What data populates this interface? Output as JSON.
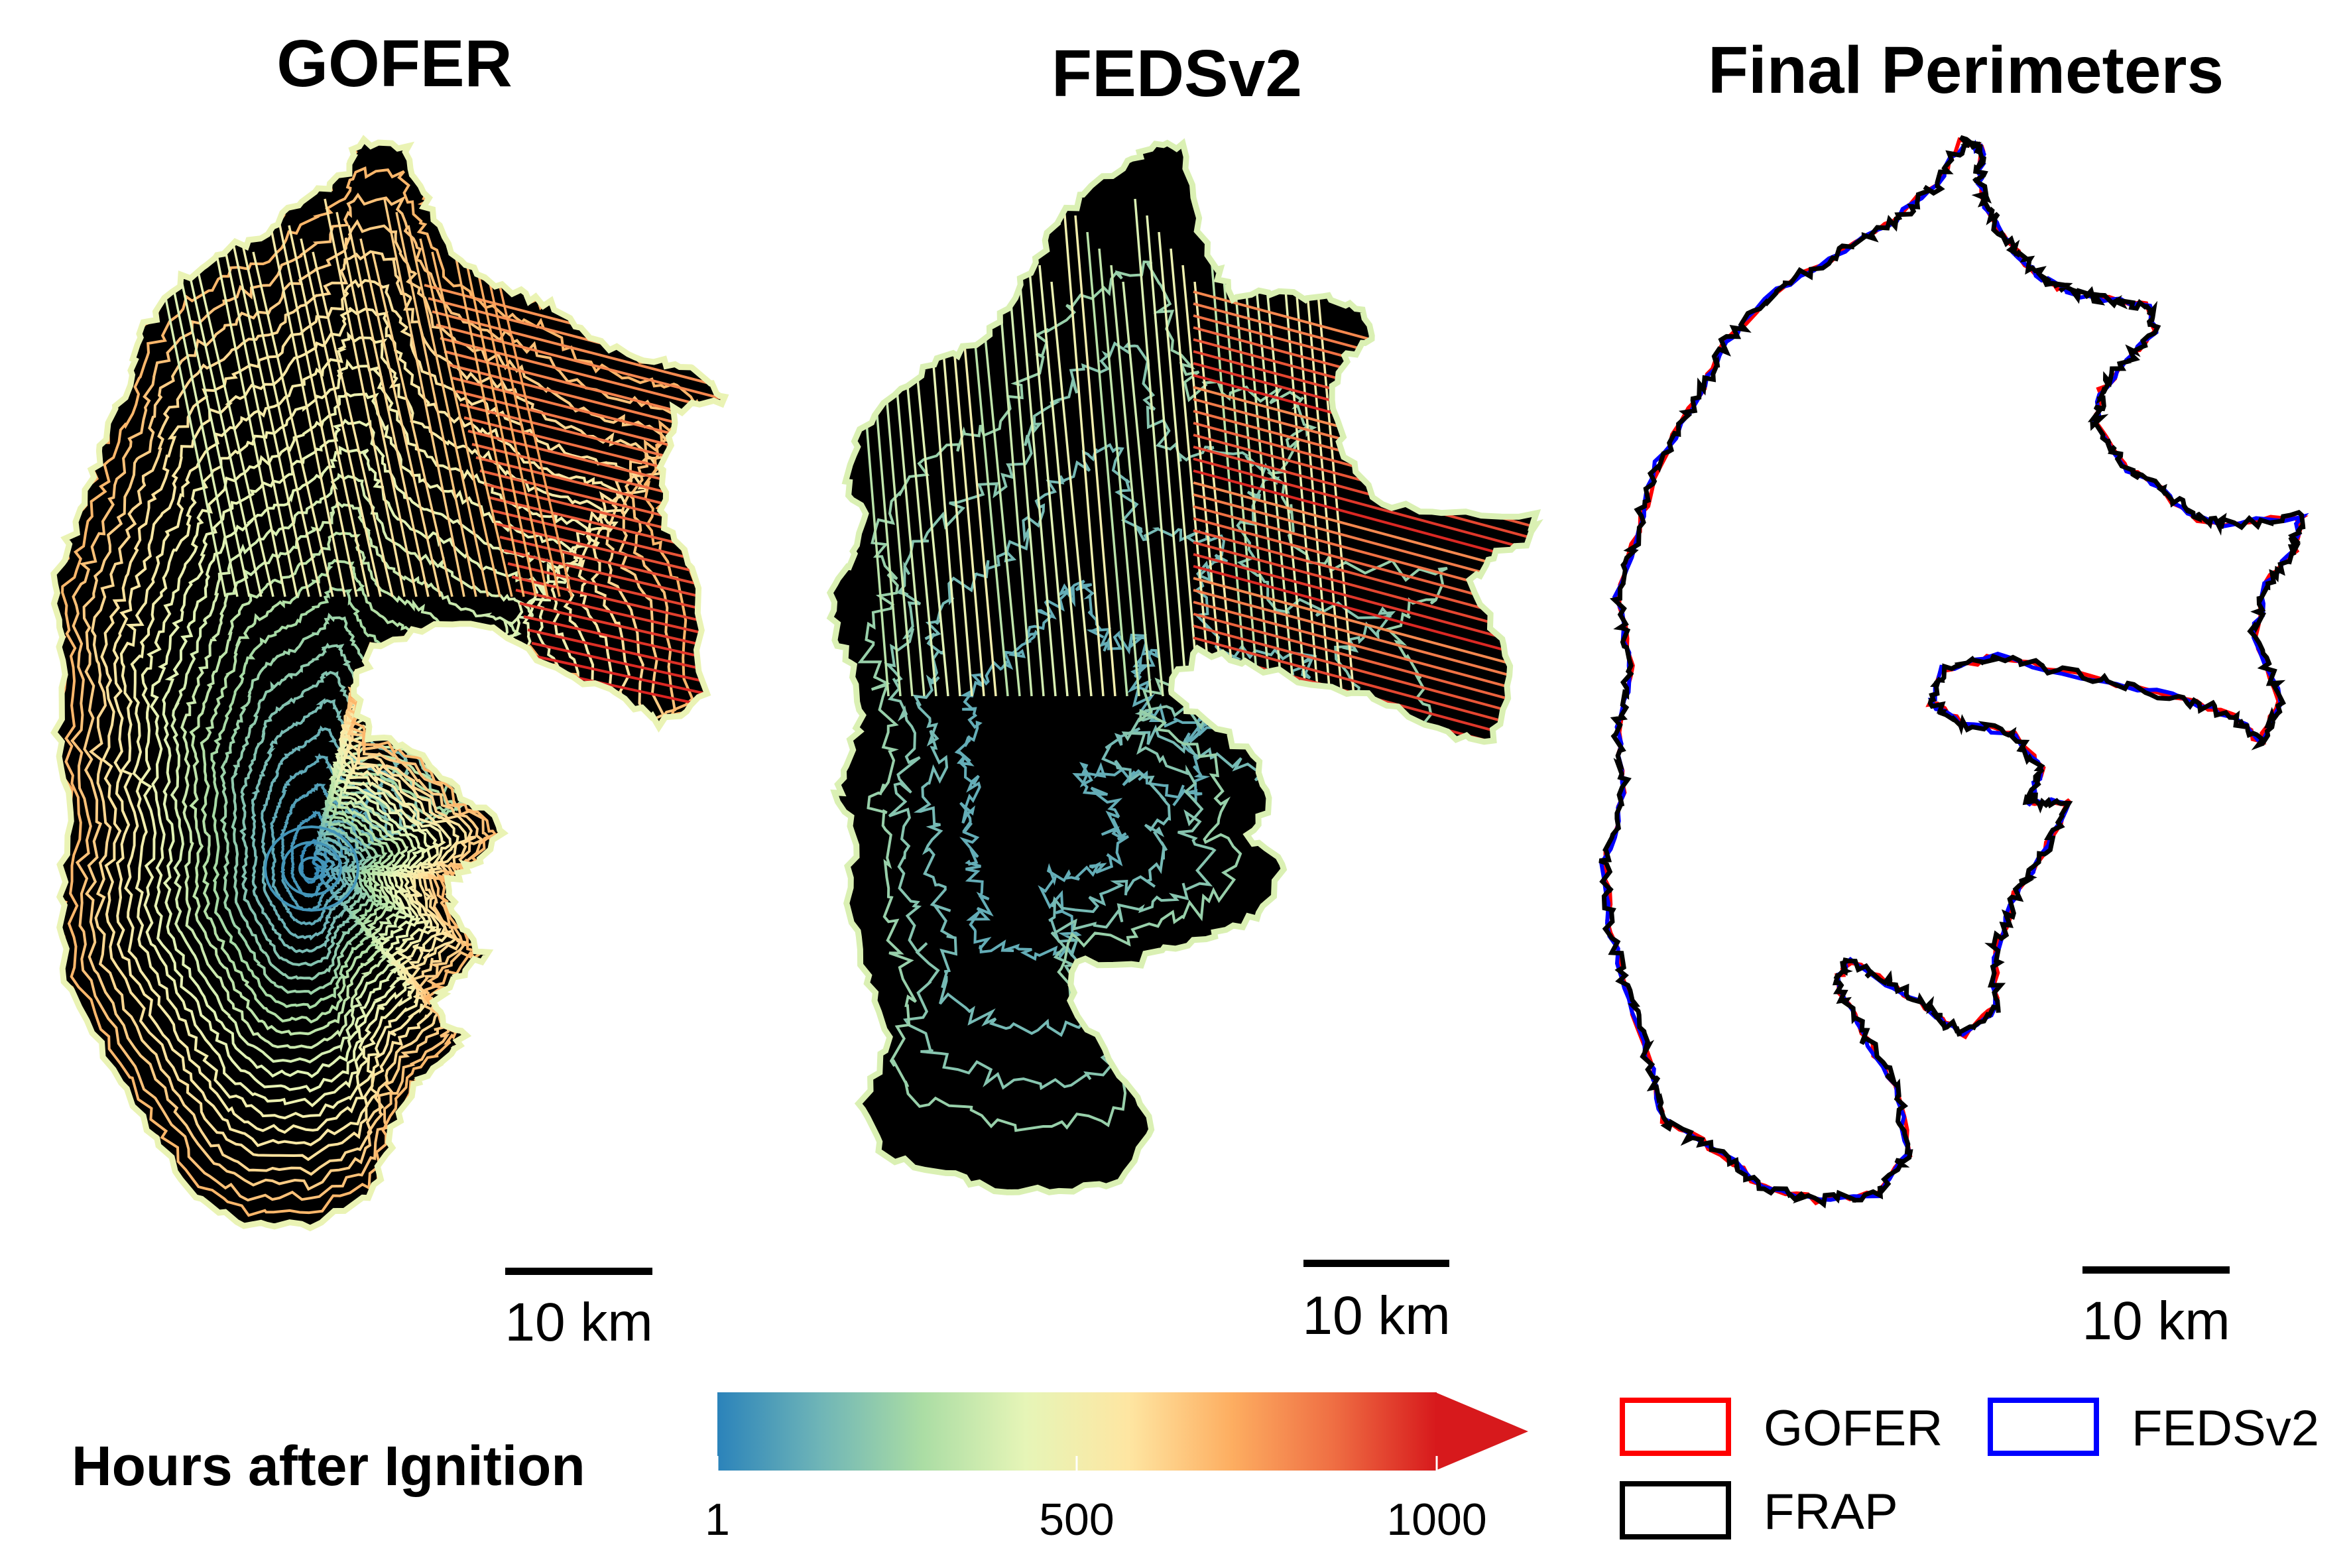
{
  "panels": [
    {
      "title": "GOFER",
      "scale_label": "10 km"
    },
    {
      "title": "FEDSv2",
      "scale_label": "10 km"
    },
    {
      "title": "Final Perimeters",
      "scale_label": "10 km"
    }
  ],
  "colorbar": {
    "title": "Hours after Ignition",
    "min": 1,
    "max": 1000,
    "tick_labels": [
      "1",
      "500",
      "1000"
    ],
    "palette": [
      "#2b83ba",
      "#6fb5b7",
      "#abdda4",
      "#e6f5b7",
      "#fee6a2",
      "#fdae61",
      "#ef6e43",
      "#d7191c"
    ]
  },
  "legend": {
    "items": [
      {
        "label": "GOFER",
        "color": "#ff0000"
      },
      {
        "label": "FEDSv2",
        "color": "#0000ff"
      },
      {
        "label": "FRAP",
        "color": "#000000"
      }
    ]
  }
}
